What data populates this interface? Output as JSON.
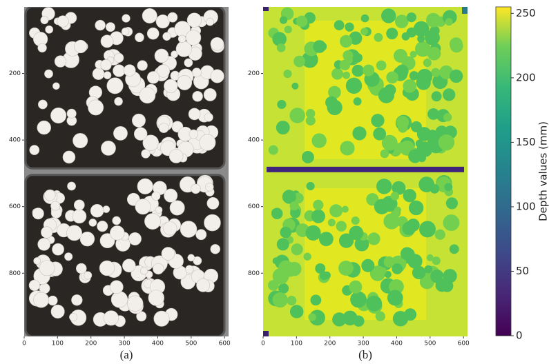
{
  "chart_data": [
    {
      "type": "image",
      "label": "(a)",
      "xlim": [
        0,
        612
      ],
      "ylim": [
        990,
        0
      ],
      "xticks": [
        0,
        100,
        200,
        300,
        400,
        500,
        600
      ],
      "yticks": [
        200,
        400,
        600,
        800
      ]
    },
    {
      "type": "heatmap",
      "label": "(b)",
      "xlim": [
        0,
        612
      ],
      "ylim": [
        990,
        0
      ],
      "xticks": [
        0,
        100,
        200,
        300,
        400,
        500,
        600
      ],
      "yticks": [
        200,
        400,
        600,
        800
      ],
      "colorbar": {
        "label": "Depth values (mm)",
        "lim": [
          0,
          255
        ],
        "ticks": [
          0,
          50,
          100,
          150,
          200,
          250
        ]
      }
    }
  ]
}
